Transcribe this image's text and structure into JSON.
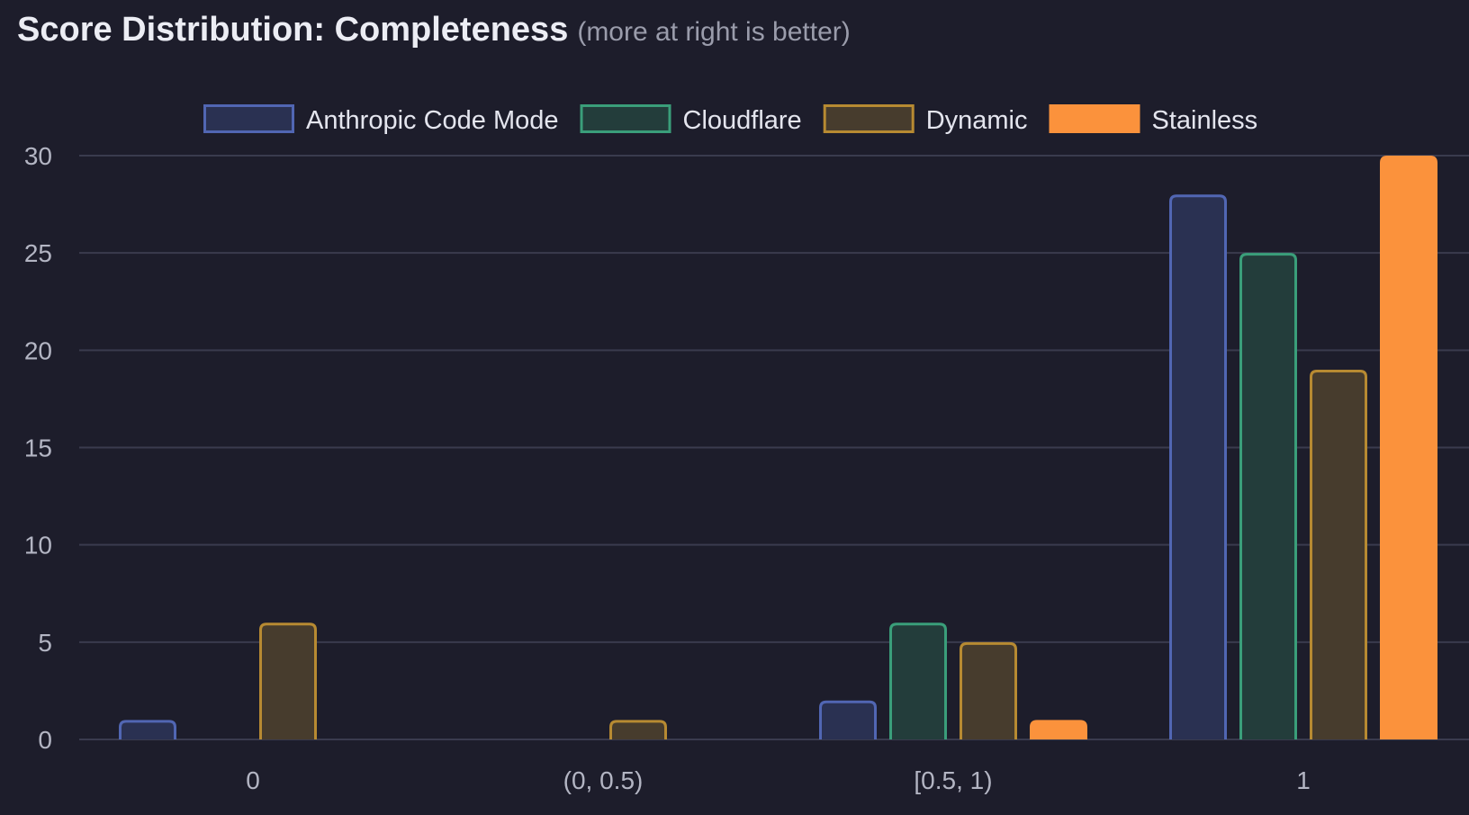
{
  "title": "Score Distribution: Completeness",
  "subtitle": "(more at right is better)",
  "chart_data": {
    "type": "bar",
    "categories": [
      "0",
      "(0, 0.5)",
      "[0.5, 1)",
      "1"
    ],
    "series": [
      {
        "name": "Anthropic Code Mode",
        "values": [
          1,
          0,
          2,
          28
        ],
        "fill": "#2a3152",
        "stroke": "#5166b3"
      },
      {
        "name": "Cloudflare",
        "values": [
          0,
          0,
          6,
          25
        ],
        "fill": "#233d3b",
        "stroke": "#3a9e7a"
      },
      {
        "name": "Dynamic",
        "values": [
          6,
          1,
          5,
          19
        ],
        "fill": "#473c2d",
        "stroke": "#b78a32"
      },
      {
        "name": "Stainless",
        "values": [
          0,
          0,
          1,
          30
        ],
        "fill": "#fb923c",
        "stroke": "#fb923c"
      }
    ],
    "yticks": [
      0,
      5,
      10,
      15,
      20,
      25,
      30
    ],
    "ylim": [
      0,
      30
    ],
    "xlabel": "",
    "ylabel": "",
    "grid": true,
    "legend": "top-center"
  }
}
